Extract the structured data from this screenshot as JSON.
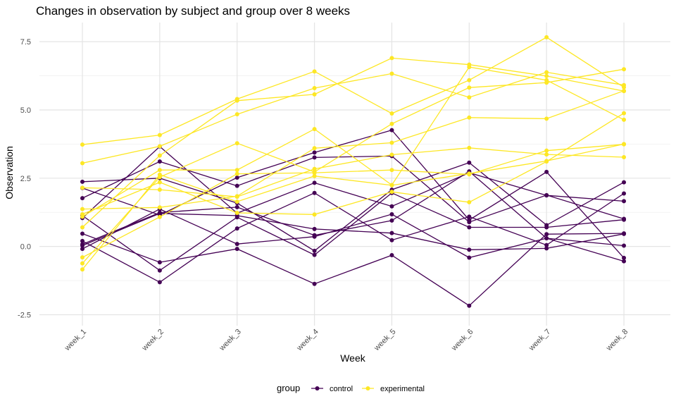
{
  "chart_data": {
    "type": "line",
    "title": "Changes in observation by subject and group over 8 weeks",
    "xlabel": "Week",
    "ylabel": "Observation",
    "x": [
      "week_1",
      "week_2",
      "week_3",
      "week_4",
      "week_5",
      "week_6",
      "week_7",
      "week_8"
    ],
    "ylim": [
      -2.9,
      8.2
    ],
    "yticks": [
      -2.5,
      0.0,
      2.5,
      5.0,
      7.5
    ],
    "ytick_labels": [
      "-2.5",
      "0.0",
      "2.5",
      "5.0",
      "7.5"
    ],
    "grid": true,
    "legend": {
      "title": "group",
      "position": "bottom",
      "entries": [
        "control",
        "experimental"
      ]
    },
    "colors": {
      "control": "#440154",
      "experimental": "#FDE725"
    },
    "subjects": [
      {
        "group": "control",
        "values": [
          0.2,
          -1.31,
          0.66,
          1.96,
          0.23,
          1.09,
          0.05,
          1.94
        ]
      },
      {
        "group": "control",
        "values": [
          1.13,
          -0.88,
          1.07,
          -0.31,
          1.96,
          0.7,
          0.7,
          0.98
        ]
      },
      {
        "group": "control",
        "values": [
          1.77,
          3.11,
          2.22,
          3.26,
          3.31,
          0.89,
          1.88,
          1.01
        ]
      },
      {
        "group": "control",
        "values": [
          1.04,
          3.66,
          1.22,
          2.33,
          1.47,
          2.7,
          1.87,
          1.66
        ]
      },
      {
        "group": "control",
        "values": [
          0.47,
          -0.58,
          -0.09,
          -1.37,
          -0.32,
          -2.17,
          0.45,
          0.48
        ]
      },
      {
        "group": "control",
        "values": [
          2.37,
          2.5,
          1.59,
          -0.16,
          2.08,
          3.07,
          0.78,
          2.35
        ]
      },
      {
        "group": "control",
        "values": [
          0.03,
          1.21,
          1.13,
          0.64,
          0.49,
          -0.12,
          -0.07,
          0.46
        ]
      },
      {
        "group": "control",
        "values": [
          -0.09,
          1.37,
          0.09,
          0.36,
          1.18,
          -0.41,
          0.3,
          -0.54
        ]
      },
      {
        "group": "control",
        "values": [
          0.08,
          1.24,
          1.44,
          0.41,
          0.95,
          2.75,
          0.3,
          0.03
        ]
      },
      {
        "group": "control",
        "values": [
          2.14,
          1.15,
          2.52,
          3.44,
          4.26,
          0.97,
          2.73,
          -0.42
        ]
      },
      {
        "group": "experimental",
        "values": [
          3.05,
          3.67,
          4.84,
          5.8,
          6.33,
          5.46,
          6.38,
          5.91
        ]
      },
      {
        "group": "experimental",
        "values": [
          -0.84,
          2.63,
          1.64,
          2.58,
          2.24,
          2.67,
          3.13,
          3.75
        ]
      },
      {
        "group": "experimental",
        "values": [
          2.15,
          2.08,
          1.82,
          2.84,
          3.36,
          3.61,
          3.37,
          3.27
        ]
      },
      {
        "group": "experimental",
        "values": [
          -0.62,
          2.54,
          3.78,
          2.73,
          4.49,
          5.82,
          6.0,
          6.49
        ]
      },
      {
        "group": "experimental",
        "values": [
          0.7,
          3.33,
          5.34,
          5.57,
          6.9,
          6.66,
          6.24,
          5.69
        ]
      },
      {
        "group": "experimental",
        "values": [
          3.73,
          4.08,
          5.4,
          6.41,
          4.87,
          6.09,
          7.66,
          5.83
        ]
      },
      {
        "group": "experimental",
        "values": [
          1.18,
          2.35,
          1.23,
          1.17,
          2.0,
          1.62,
          3.11,
          4.88
        ]
      },
      {
        "group": "experimental",
        "values": [
          1.37,
          1.43,
          1.84,
          3.6,
          3.8,
          4.72,
          4.68,
          5.7
        ]
      },
      {
        "group": "experimental",
        "values": [
          -0.4,
          1.08,
          2.66,
          2.7,
          2.8,
          2.64,
          3.51,
          3.74
        ]
      },
      {
        "group": "experimental",
        "values": [
          1.09,
          2.8,
          2.8,
          4.3,
          2.25,
          6.57,
          6.09,
          4.64
        ]
      }
    ]
  }
}
